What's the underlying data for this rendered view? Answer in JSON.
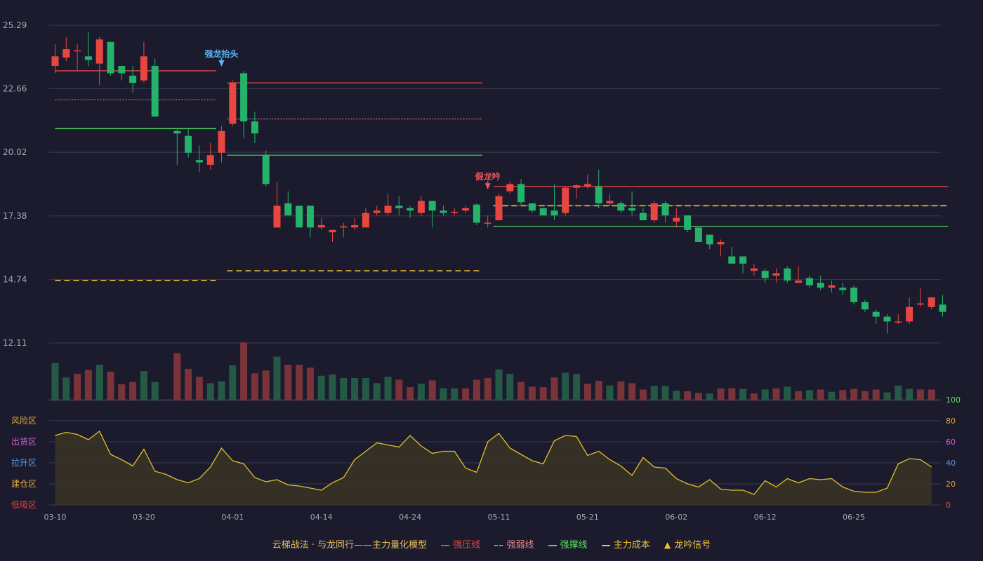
{
  "colors": {
    "background": "#1b1b2d",
    "grid": "#3a3a52",
    "axis_text": "#a6a6b8",
    "up": "#e9463f",
    "down": "#23b36b",
    "up_volume": "#7a3338",
    "down_volume": "#245a45",
    "pressure_line": "#e04646",
    "weak_line": "#e07a86",
    "support_line": "#4fd25c",
    "cost_line": "#f2c230",
    "indicator_line": "#e0c02a",
    "indicator_fill": "#3a3426",
    "signal_blue": "#57b8f2",
    "signal_red": "#e9585a"
  },
  "legend": {
    "title": "云梯战法 · 与龙同行——主力量化模型",
    "items": [
      {
        "key": "pressure",
        "label": "强压线",
        "color": "#e9463f",
        "style": "solid"
      },
      {
        "key": "weak",
        "label": "强弱线",
        "color": "#e9858e",
        "style": "dotted"
      },
      {
        "key": "support",
        "label": "强撑线",
        "color": "#56e060",
        "style": "solid"
      },
      {
        "key": "cost",
        "label": "主力成本",
        "color": "#f2c230",
        "style": "dashed"
      },
      {
        "key": "signal",
        "label": "龙吟信号",
        "color": "#f2c230",
        "style": "triangle"
      }
    ]
  },
  "chart_data": {
    "type": "candlestick",
    "price_axis": {
      "ticks": [
        "25.29",
        "22.66",
        "20.02",
        "17.38",
        "14.74",
        "12.11"
      ],
      "range": [
        12.11,
        25.29
      ]
    },
    "indicator_axis": {
      "right_ticks": [
        "100",
        "80",
        "60",
        "40",
        "20",
        "0"
      ],
      "right_tick_colors": [
        "#5de05d",
        "#e2a43c",
        "#d85bd8",
        "#5b9de8",
        "#e2a43c",
        "#e9463f"
      ],
      "left_zones": [
        {
          "label": "风险区",
          "color": "#e2a43c"
        },
        {
          "label": "出货区",
          "color": "#d85bd8"
        },
        {
          "label": "拉升区",
          "color": "#5b9de8"
        },
        {
          "label": "建仓区",
          "color": "#e2a43c"
        },
        {
          "label": "低吸区",
          "color": "#e9463f"
        }
      ]
    },
    "x_ticks": [
      {
        "label": "03-10",
        "index": 0
      },
      {
        "label": "03-20",
        "index": 8
      },
      {
        "label": "04-01",
        "index": 16
      },
      {
        "label": "04-14",
        "index": 24
      },
      {
        "label": "04-24",
        "index": 32
      },
      {
        "label": "05-11",
        "index": 40
      },
      {
        "label": "05-21",
        "index": 48
      },
      {
        "label": "06-02",
        "index": 56
      },
      {
        "label": "06-12",
        "index": 64
      },
      {
        "label": "06-25",
        "index": 72
      }
    ],
    "candles": [
      [
        23.6,
        24.0,
        24.5,
        23.3
      ],
      [
        23.95,
        24.3,
        24.8,
        23.8
      ],
      [
        24.25,
        24.25,
        24.5,
        23.4
      ],
      [
        24.0,
        23.85,
        25.0,
        23.6
      ],
      [
        23.7,
        24.7,
        24.8,
        22.8
      ],
      [
        24.6,
        23.3,
        24.6,
        23.2
      ],
      [
        23.6,
        23.3,
        23.6,
        23.0
      ],
      [
        23.2,
        22.9,
        23.6,
        22.5
      ],
      [
        23.0,
        24.0,
        24.6,
        22.9
      ],
      [
        23.6,
        21.5,
        23.9,
        21.5
      ],
      [
        null,
        null,
        null,
        null
      ],
      [
        20.9,
        20.8,
        21.0,
        19.5
      ],
      [
        20.7,
        20.0,
        21.0,
        19.8
      ],
      [
        19.7,
        19.6,
        20.3,
        19.2
      ],
      [
        19.5,
        19.9,
        20.4,
        19.3
      ],
      [
        20.0,
        20.9,
        21.1,
        19.6
      ],
      [
        21.2,
        22.9,
        23.0,
        21.1
      ],
      [
        23.3,
        21.3,
        23.4,
        20.6
      ],
      [
        21.3,
        20.8,
        21.7,
        20.4
      ],
      [
        19.9,
        18.7,
        20.1,
        18.6
      ],
      [
        16.9,
        17.8,
        18.8,
        16.9
      ],
      [
        17.9,
        17.4,
        18.4,
        17.4
      ],
      [
        17.8,
        16.9,
        17.8,
        16.9
      ],
      [
        17.8,
        16.9,
        17.8,
        16.5
      ],
      [
        16.9,
        17.0,
        17.3,
        16.8
      ],
      [
        16.7,
        16.8,
        16.8,
        16.3
      ],
      [
        16.9,
        16.95,
        17.1,
        16.5
      ],
      [
        16.9,
        17.0,
        17.3,
        16.8
      ],
      [
        16.9,
        17.5,
        17.7,
        16.9
      ],
      [
        17.5,
        17.6,
        17.8,
        17.4
      ],
      [
        17.5,
        17.8,
        18.3,
        17.4
      ],
      [
        17.8,
        17.7,
        18.2,
        17.4
      ],
      [
        17.7,
        17.6,
        17.8,
        17.3
      ],
      [
        17.5,
        18.0,
        18.2,
        17.4
      ],
      [
        18.0,
        17.6,
        18.0,
        16.9
      ],
      [
        17.6,
        17.5,
        17.8,
        17.4
      ],
      [
        17.5,
        17.55,
        17.7,
        17.4
      ],
      [
        17.6,
        17.7,
        17.8,
        17.5
      ],
      [
        17.85,
        17.1,
        17.9,
        17.0
      ],
      [
        17.1,
        17.1,
        17.4,
        16.9
      ],
      [
        17.2,
        18.2,
        18.3,
        17.2
      ],
      [
        18.4,
        18.7,
        18.8,
        18.3
      ],
      [
        18.7,
        17.95,
        18.9,
        17.8
      ],
      [
        17.9,
        17.6,
        17.9,
        17.5
      ],
      [
        17.7,
        17.4,
        17.7,
        17.4
      ],
      [
        17.6,
        17.4,
        18.7,
        17.2
      ],
      [
        17.5,
        18.55,
        18.6,
        17.4
      ],
      [
        18.55,
        18.65,
        18.7,
        18.1
      ],
      [
        18.6,
        18.7,
        19.1,
        18.5
      ],
      [
        18.6,
        17.9,
        19.3,
        17.7
      ],
      [
        17.9,
        18.0,
        18.3,
        17.8
      ],
      [
        17.9,
        17.6,
        18.0,
        17.5
      ],
      [
        17.7,
        17.6,
        18.4,
        17.4
      ],
      [
        17.5,
        17.2,
        17.7,
        17.2
      ],
      [
        17.2,
        17.9,
        18.0,
        17.1
      ],
      [
        17.9,
        17.4,
        18.0,
        17.1
      ],
      [
        17.15,
        17.3,
        17.7,
        16.9
      ],
      [
        17.4,
        16.8,
        17.4,
        16.7
      ],
      [
        16.9,
        16.3,
        16.9,
        16.3
      ],
      [
        16.6,
        16.2,
        16.6,
        16.0
      ],
      [
        16.2,
        16.3,
        16.4,
        15.7
      ],
      [
        15.7,
        15.4,
        16.1,
        15.4
      ],
      [
        15.7,
        15.4,
        15.7,
        15.0
      ],
      [
        15.1,
        15.2,
        15.4,
        14.9
      ],
      [
        15.1,
        14.8,
        15.2,
        14.6
      ],
      [
        14.9,
        15.0,
        15.2,
        14.6
      ],
      [
        15.2,
        14.7,
        15.3,
        14.6
      ],
      [
        14.6,
        14.7,
        15.3,
        14.6
      ],
      [
        14.8,
        14.5,
        14.9,
        14.4
      ],
      [
        14.6,
        14.4,
        14.9,
        14.3
      ],
      [
        14.4,
        14.5,
        14.7,
        14.2
      ],
      [
        14.4,
        14.3,
        14.6,
        14.1
      ],
      [
        14.4,
        13.8,
        14.5,
        13.7
      ],
      [
        13.8,
        13.5,
        13.9,
        13.4
      ],
      [
        13.4,
        13.2,
        13.5,
        12.9
      ],
      [
        13.2,
        13.0,
        13.3,
        12.5
      ],
      [
        13.0,
        13.0,
        13.3,
        12.9
      ],
      [
        13.0,
        13.6,
        14.0,
        12.9
      ],
      [
        13.7,
        13.75,
        14.4,
        13.6
      ],
      [
        13.6,
        14.0,
        14.0,
        13.5
      ],
      [
        13.7,
        13.4,
        14.1,
        13.2
      ]
    ],
    "volume": [
      {
        "v": 65,
        "up": false
      },
      {
        "v": 40,
        "up": false
      },
      {
        "v": 46,
        "up": true
      },
      {
        "v": 53,
        "up": true
      },
      {
        "v": 62,
        "up": false
      },
      {
        "v": 50,
        "up": true
      },
      {
        "v": 28,
        "up": true
      },
      {
        "v": 32,
        "up": true
      },
      {
        "v": 51,
        "up": false
      },
      {
        "v": 32,
        "up": false
      },
      {
        "v": null,
        "up": false
      },
      {
        "v": 82,
        "up": true
      },
      {
        "v": 55,
        "up": true
      },
      {
        "v": 41,
        "up": true
      },
      {
        "v": 30,
        "up": false
      },
      {
        "v": 33,
        "up": false
      },
      {
        "v": 61,
        "up": false
      },
      {
        "v": 101,
        "up": true
      },
      {
        "v": 47,
        "up": true
      },
      {
        "v": 52,
        "up": true
      },
      {
        "v": 76,
        "up": false
      },
      {
        "v": 62,
        "up": true
      },
      {
        "v": 62,
        "up": true
      },
      {
        "v": 57,
        "up": true
      },
      {
        "v": 43,
        "up": false
      },
      {
        "v": 45,
        "up": false
      },
      {
        "v": 39,
        "up": false
      },
      {
        "v": 39,
        "up": false
      },
      {
        "v": 39,
        "up": false
      },
      {
        "v": 30,
        "up": false
      },
      {
        "v": 41,
        "up": false
      },
      {
        "v": 36,
        "up": true
      },
      {
        "v": 23,
        "up": true
      },
      {
        "v": 29,
        "up": false
      },
      {
        "v": 35,
        "up": true
      },
      {
        "v": 21,
        "up": false
      },
      {
        "v": 21,
        "up": false
      },
      {
        "v": 21,
        "up": true
      },
      {
        "v": 36,
        "up": true
      },
      {
        "v": 39,
        "up": true
      },
      {
        "v": 54,
        "up": false
      },
      {
        "v": 46,
        "up": false
      },
      {
        "v": 32,
        "up": true
      },
      {
        "v": 24,
        "up": true
      },
      {
        "v": 23,
        "up": true
      },
      {
        "v": 40,
        "up": true
      },
      {
        "v": 48,
        "up": false
      },
      {
        "v": 46,
        "up": false
      },
      {
        "v": 29,
        "up": true
      },
      {
        "v": 34,
        "up": true
      },
      {
        "v": 26,
        "up": false
      },
      {
        "v": 33,
        "up": true
      },
      {
        "v": 30,
        "up": true
      },
      {
        "v": 19,
        "up": true
      },
      {
        "v": 25,
        "up": false
      },
      {
        "v": 25,
        "up": false
      },
      {
        "v": 17,
        "up": false
      },
      {
        "v": 16,
        "up": true
      },
      {
        "v": 13,
        "up": true
      },
      {
        "v": 12,
        "up": false
      },
      {
        "v": 21,
        "up": true
      },
      {
        "v": 21,
        "up": true
      },
      {
        "v": 20,
        "up": false
      },
      {
        "v": 12,
        "up": true
      },
      {
        "v": 19,
        "up": false
      },
      {
        "v": 21,
        "up": true
      },
      {
        "v": 24,
        "up": false
      },
      {
        "v": 16,
        "up": true
      },
      {
        "v": 18,
        "up": false
      },
      {
        "v": 19,
        "up": true
      },
      {
        "v": 15,
        "up": false
      },
      {
        "v": 18,
        "up": true
      },
      {
        "v": 20,
        "up": true
      },
      {
        "v": 16,
        "up": true
      },
      {
        "v": 19,
        "up": true
      },
      {
        "v": 14,
        "up": false
      },
      {
        "v": 26,
        "up": false
      },
      {
        "v": 20,
        "up": false
      },
      {
        "v": 19,
        "up": true
      },
      {
        "v": 19,
        "up": true
      }
    ],
    "indicator": [
      66,
      69,
      67,
      62,
      70,
      48,
      43,
      37,
      53,
      32,
      29,
      24,
      21,
      25,
      36,
      54,
      42,
      39,
      26,
      22,
      24,
      19,
      18,
      16,
      14,
      21,
      26,
      43,
      51,
      59,
      57,
      55,
      66,
      56,
      49,
      51,
      51,
      35,
      31,
      60,
      68,
      54,
      48,
      42,
      39,
      61,
      66,
      65,
      47,
      51,
      43,
      37,
      28,
      45,
      36,
      35,
      25,
      20,
      17,
      24,
      15,
      14,
      14,
      10,
      23,
      17,
      25,
      21,
      25,
      24,
      25,
      17,
      13,
      12,
      12,
      16,
      39,
      44,
      43,
      36
    ],
    "lines": [
      {
        "type": "pressure",
        "y": 23.4,
        "from": 0,
        "to": 14.5
      },
      {
        "type": "weak",
        "y": 22.2,
        "from": 0,
        "to": 14.5
      },
      {
        "type": "support",
        "y": 21.0,
        "from": 0,
        "to": 14.5
      },
      {
        "type": "cost",
        "y": 14.7,
        "from": 0,
        "to": 14.5
      },
      {
        "type": "pressure",
        "y": 22.9,
        "from": 15.5,
        "to": 38.5
      },
      {
        "type": "weak",
        "y": 21.4,
        "from": 15.5,
        "to": 38.5
      },
      {
        "type": "support",
        "y": 19.9,
        "from": 15.5,
        "to": 38.5
      },
      {
        "type": "cost",
        "y": 15.1,
        "from": 15.5,
        "to": 38.5
      },
      {
        "type": "pressure",
        "y": 18.6,
        "from": 39.5,
        "to": 80.5
      },
      {
        "type": "weak",
        "y": 17.8,
        "from": 39.5,
        "to": 80.5
      },
      {
        "type": "cost",
        "y": 17.8,
        "from": 39.5,
        "to": 80.5
      },
      {
        "type": "support",
        "y": 16.95,
        "from": 39.5,
        "to": 80.5
      }
    ],
    "signals": [
      {
        "label": "强龙抬头",
        "index": 15,
        "y": 23.4,
        "color": "#57b8f2"
      },
      {
        "label": "假龙吟",
        "index": 39,
        "y": 18.3,
        "color": "#e9585a"
      }
    ]
  }
}
